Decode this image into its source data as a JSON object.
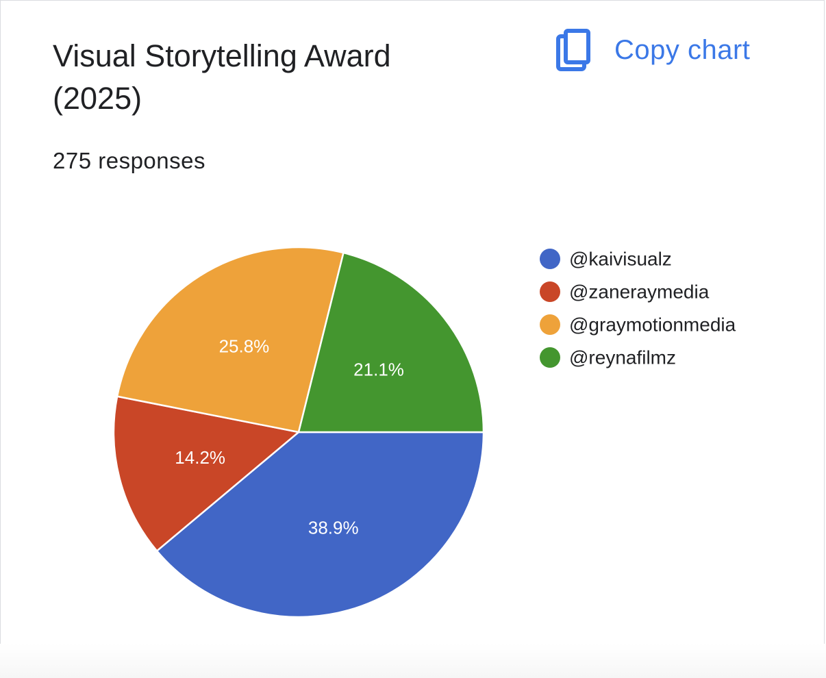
{
  "card": {
    "title": "Visual Storytelling Award (2025)",
    "responses": "275 responses",
    "copy_label": "Copy chart",
    "copy_icon": "copy-icon"
  },
  "colors": {
    "accent": "#3b78e7",
    "series": [
      "#4166c6",
      "#c94627",
      "#eea23a",
      "#44962f"
    ]
  },
  "chart_data": {
    "type": "pie",
    "title": "Visual Storytelling Award (2025)",
    "subtitle": "275 responses",
    "legend_position": "right",
    "slices": [
      {
        "label": "@kaivisualz",
        "value": 38.9,
        "display": "38.9%",
        "color": "#4166c6"
      },
      {
        "label": "@zaneraymedia",
        "value": 14.2,
        "display": "14.2%",
        "color": "#c94627"
      },
      {
        "label": "@graymotionmedia",
        "value": 25.8,
        "display": "25.8%",
        "color": "#eea23a"
      },
      {
        "label": "@reynafilmz",
        "value": 21.1,
        "display": "21.1%",
        "color": "#44962f"
      }
    ]
  }
}
